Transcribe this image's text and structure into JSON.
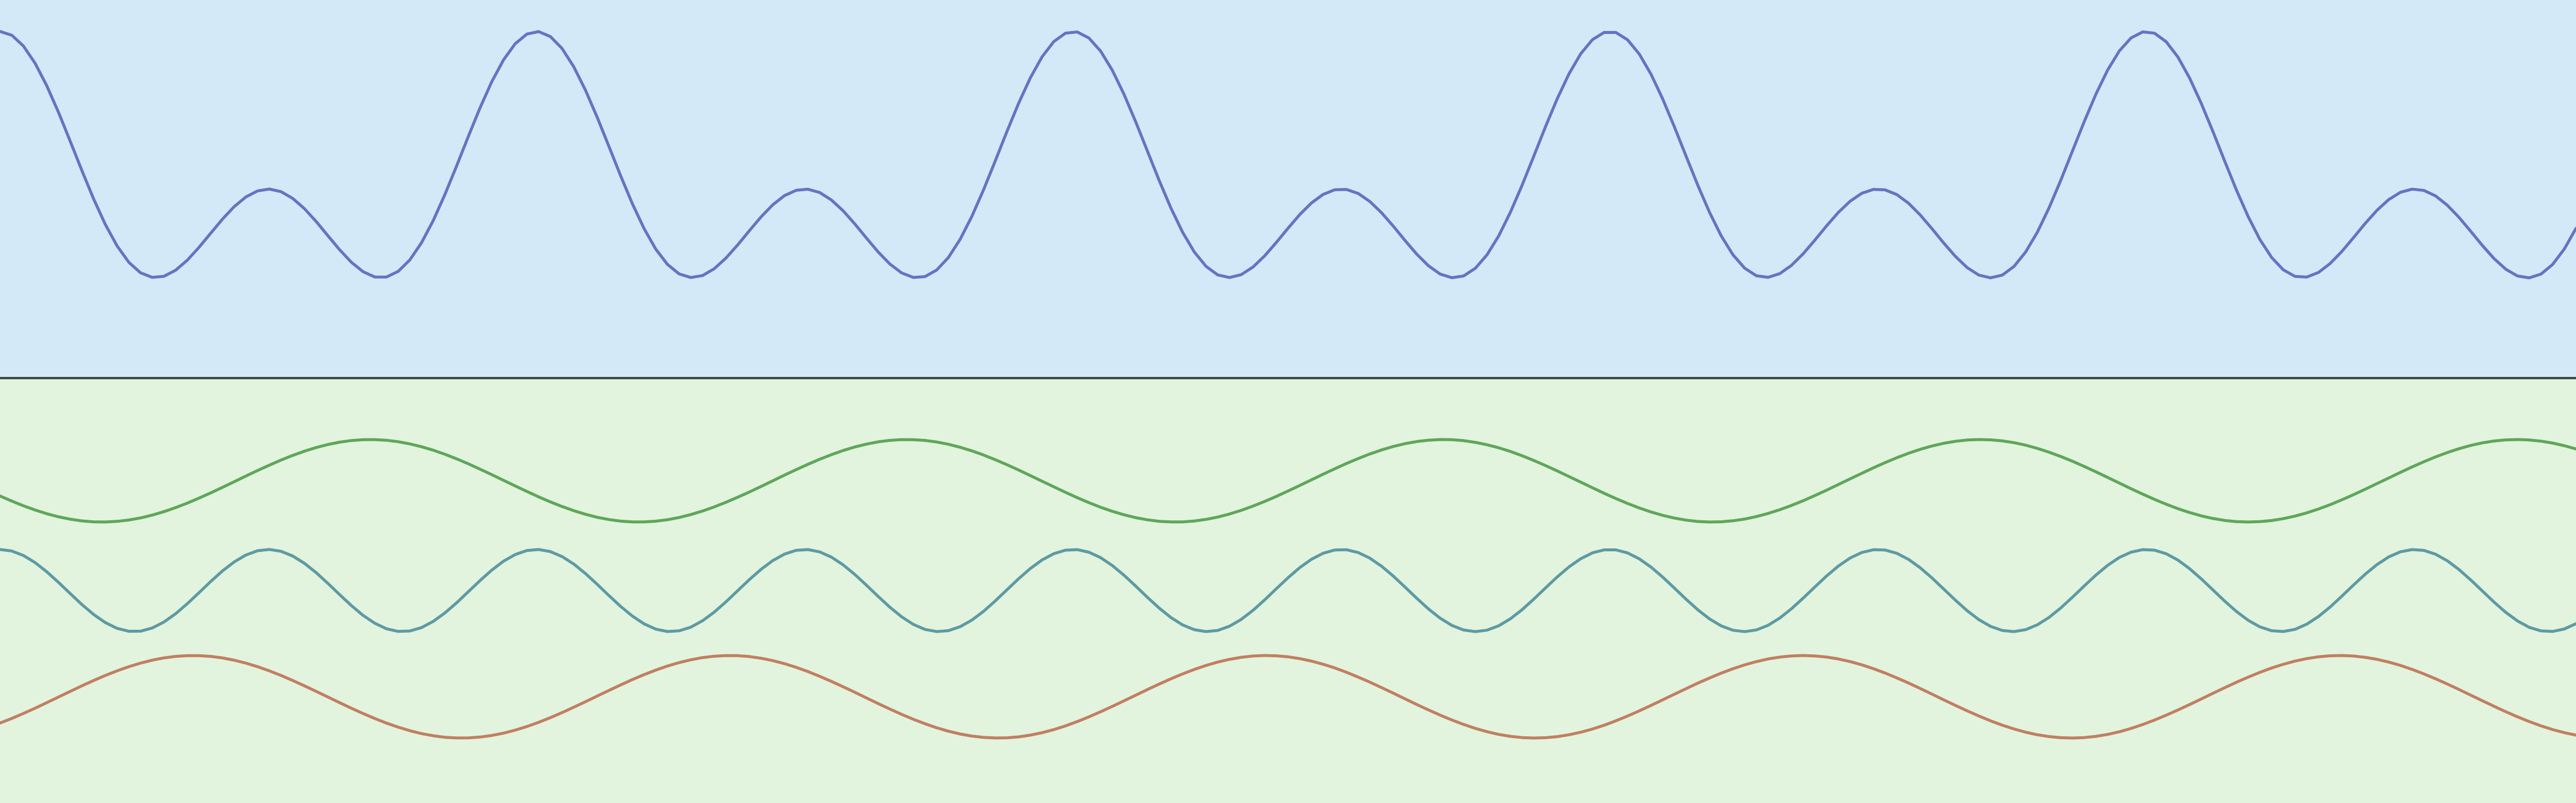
{
  "chart_data": [
    {
      "type": "line",
      "title": "",
      "xlabel": "",
      "ylabel": "",
      "grid": false,
      "legend": false,
      "background": "#d3e9f8",
      "xlim": [
        0,
        4400
      ],
      "ylim": [
        -1.2,
        1.2
      ],
      "series": [
        {
          "color": "#6574c0",
          "x_step": 20,
          "components": [
            {
              "amplitude": 0.5,
              "period": 916.7,
              "phase_at_x0": 0
            },
            {
              "amplitude": 0.5,
              "period": 458.3,
              "phase_at_x0": 0
            }
          ]
        }
      ]
    },
    {
      "type": "line",
      "title": "",
      "xlabel": "",
      "ylabel": "",
      "grid": false,
      "legend": false,
      "background": "#e2f4dd",
      "xlim": [
        0,
        4400
      ],
      "ylim": [
        -1.2,
        1.2
      ],
      "series": [
        {
          "color": "#5fa65a",
          "x_step": 20,
          "y_center": 0.62,
          "components": [
            {
              "amplitude": 0.233,
              "period": 916.7,
              "phase_at_x0": 0.69
            }
          ]
        },
        {
          "color": "#5e9aa3",
          "x_step": 20,
          "y_center": 0.0,
          "components": [
            {
              "amplitude": 0.232,
              "period": 458.3,
              "phase_at_x0": 0
            }
          ]
        },
        {
          "color": "#c17f62",
          "x_step": 20,
          "y_center": -0.6,
          "components": [
            {
              "amplitude": 0.233,
              "period": 916.7,
              "phase_at_x0": 0.36
            }
          ]
        }
      ]
    }
  ],
  "divider_color": "#3b4b46"
}
